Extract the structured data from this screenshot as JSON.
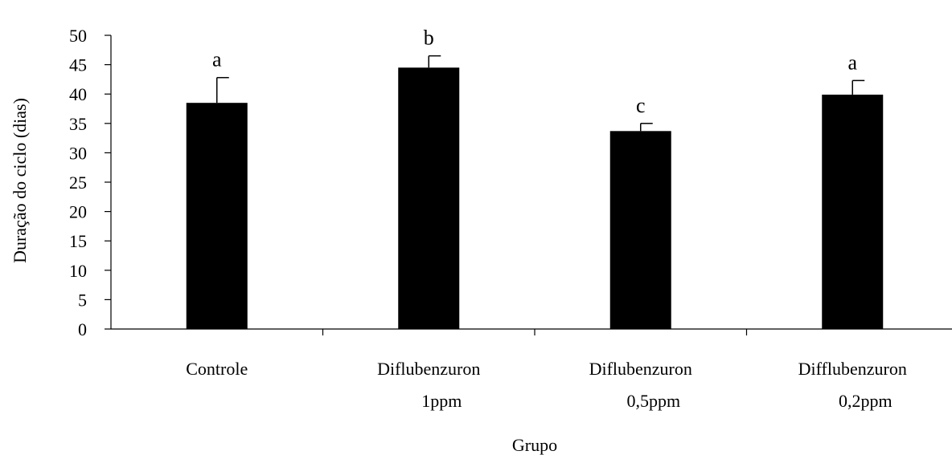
{
  "chart_data": {
    "type": "bar",
    "title": "",
    "xlabel": "Grupo",
    "ylabel": "Duração do ciclo (dias)",
    "ylim": [
      0,
      50
    ],
    "yticks": [
      0,
      5,
      10,
      15,
      20,
      25,
      30,
      35,
      40,
      45,
      50
    ],
    "categories": [
      [
        "Controle"
      ],
      [
        "Diflubenzuron",
        "1ppm"
      ],
      [
        "Diflubenzuron",
        "0,5ppm"
      ],
      [
        "Difflubenzuron",
        "0,2ppm"
      ]
    ],
    "values": [
      38.5,
      44.5,
      33.7,
      39.9
    ],
    "error_upper": [
      4.3,
      2.0,
      1.3,
      2.4
    ],
    "significance": [
      "a",
      "b",
      "c",
      "a"
    ],
    "bar_color": "#000000",
    "grid": false,
    "legend": "none"
  }
}
